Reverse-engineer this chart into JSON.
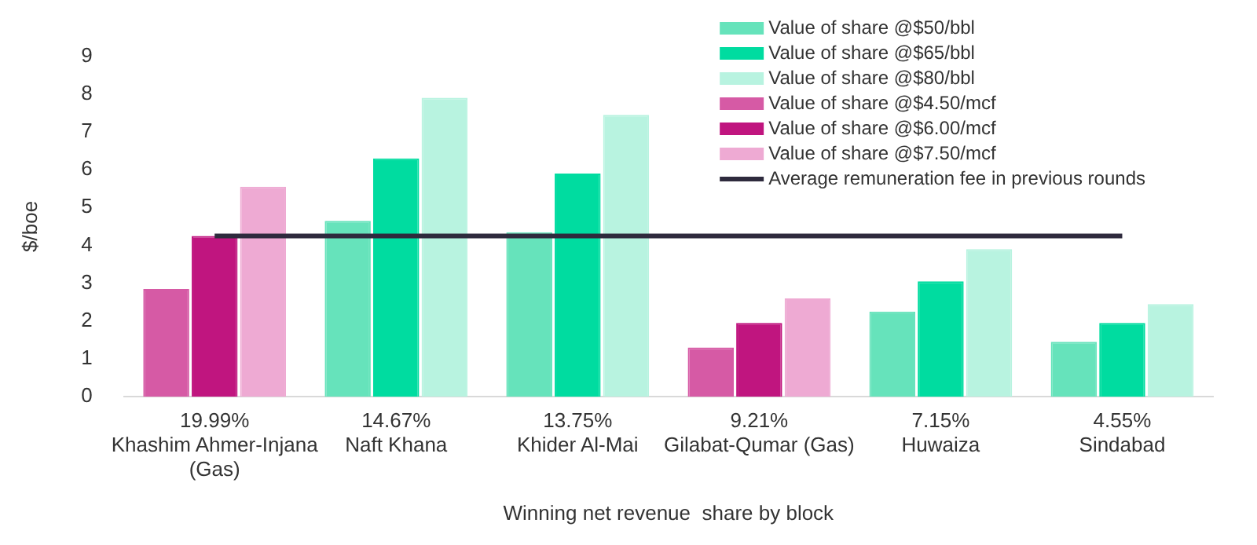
{
  "chart_data": {
    "type": "bar",
    "xlabel": "Winning net revenue  share by block",
    "ylabel": "$/boe",
    "categories": [
      "19.99%\nKhashim Ahmer-Injana\n(Gas)",
      "14.67%\nNaft Khana",
      "13.75%\nKhider Al-Mai",
      "9.21%\nGilabat-Qumar (Gas)",
      "7.15%\nHuwaiza",
      "4.55%\nSindabad"
    ],
    "series": [
      {
        "name": "Value of share @$50/bbl",
        "color": "#66e3bb",
        "values": [
          null,
          4.65,
          4.35,
          null,
          2.25,
          1.45
        ]
      },
      {
        "name": "Value of share @$65/bbl",
        "color": "#00dca0",
        "values": [
          null,
          6.3,
          5.9,
          null,
          3.05,
          1.95
        ]
      },
      {
        "name": "Value of share @$80/bbl",
        "color": "#b8f3e0",
        "values": [
          null,
          7.9,
          7.45,
          null,
          3.9,
          2.45
        ]
      },
      {
        "name": "Value of share @$4.50/mcf",
        "color": "#d65aa5",
        "values": [
          2.85,
          null,
          null,
          1.3,
          null,
          null
        ]
      },
      {
        "name": "Value of share @$6.00/mcf",
        "color": "#c0157f",
        "values": [
          4.25,
          null,
          null,
          1.95,
          null,
          null
        ]
      },
      {
        "name": "Value of share @$7.50/mcf",
        "color": "#eeaad3",
        "values": [
          5.55,
          null,
          null,
          2.6,
          null,
          null
        ]
      },
      {
        "name": "Average remuneration fee in previous rounds",
        "type": "line",
        "color": "#2e2a3d",
        "values": [
          4.25,
          4.25,
          4.25,
          4.25,
          4.25,
          4.25
        ]
      }
    ],
    "ylim": [
      0,
      9
    ],
    "yticks": [
      0,
      1,
      2,
      3,
      4,
      5,
      6,
      7,
      8,
      9
    ],
    "grid": false,
    "legend": "top right",
    "marker": "none"
  }
}
